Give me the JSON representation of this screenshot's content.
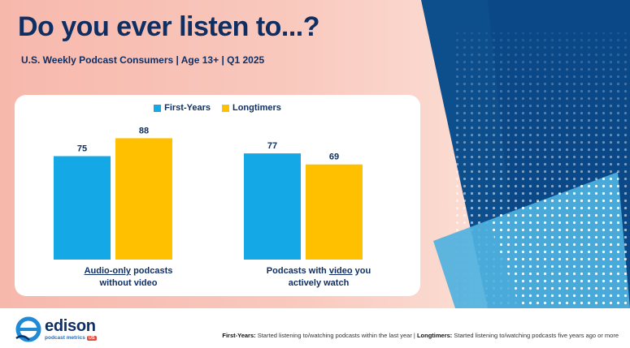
{
  "slide": {
    "title": "Do you ever listen to...?",
    "subtitle": "U.S. Weekly Podcast Consumers | Age 13+ | Q1 2025"
  },
  "legend": [
    {
      "label": "First-Years",
      "color": "#14a9e6"
    },
    {
      "label": "Longtimers",
      "color": "#ffc000"
    }
  ],
  "categories": [
    {
      "emphasis": "Audio-only",
      "before": "",
      "after": " podcasts",
      "line2": "without video"
    },
    {
      "emphasis": "video",
      "before": "Podcasts with ",
      "after": " you",
      "line2": "actively watch"
    }
  ],
  "chart_data": {
    "type": "bar",
    "categories": [
      "Audio-only podcasts without video",
      "Podcasts with video you actively watch"
    ],
    "series": [
      {
        "name": "First-Years",
        "values": [
          75,
          77
        ],
        "color": "#14a9e6"
      },
      {
        "name": "Longtimers",
        "values": [
          88,
          69
        ],
        "color": "#ffc000"
      }
    ],
    "title": "Do you ever listen to...?",
    "subtitle": "U.S. Weekly Podcast Consumers | Age 13+ | Q1 2025",
    "ylim": [
      0,
      100
    ],
    "legend": "top-center",
    "grid": false
  },
  "footer": {
    "logo_word": "edison",
    "logo_sub": "podcast metrics",
    "logo_badge": "US",
    "note1_label": "First-Years:",
    "note1_text": " Started listening to/watching podcasts within the last year",
    "separator": " | ",
    "note2_label": "Longtimers:",
    "note2_text": " Started listening to/watching podcasts five years ago or more"
  }
}
